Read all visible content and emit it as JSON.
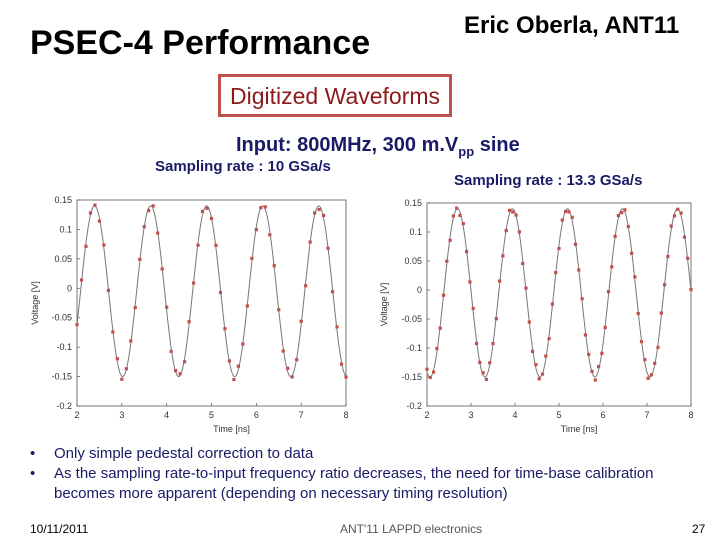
{
  "slide": {
    "title": "PSEC-4 Performance",
    "author": "Eric Oberla, ANT11",
    "boxed_label": "Digitized Waveforms",
    "input_prefix": "Input: 800MHz, 300 m.V",
    "input_sub": "pp",
    "input_suffix": " sine",
    "bullets": [
      "Only simple pedestal correction to data",
      "As the sampling rate-to-input frequency ratio decreases, the need for time-base calibration becomes more apparent (depending on necessary timing resolution)"
    ],
    "footer_date": "10/11/2011",
    "footer_center": "ANT'11 LAPPD electronics",
    "page_number": "27",
    "colors": {
      "accent_box": "#c0504d",
      "marker": "#c0504d",
      "text_dark_blue": "#1a1a66"
    }
  },
  "chart_data": [
    {
      "type": "scatter",
      "caption": "Sampling rate : 10 GSa/s",
      "xlabel": "Time [ns]",
      "ylabel": "Voltage [V]",
      "xlim": [
        2,
        8
      ],
      "ylim": [
        -0.2,
        0.15
      ],
      "xticks": [
        "2",
        "3",
        "4",
        "5",
        "6",
        "7",
        "8"
      ],
      "yticks": [
        "0.15",
        "0.1",
        "0.05",
        "0",
        "-0.05",
        "-0.1",
        "-0.15",
        "-0.2"
      ],
      "fit": {
        "type": "sine",
        "frequency_ghz": 0.8,
        "amplitude_v": 0.145,
        "offset_v": -0.005,
        "phase_ns": 2.08
      },
      "sample_period_ns": 0.1
    },
    {
      "type": "scatter",
      "caption": "Sampling rate : 13.3 GSa/s",
      "xlabel": "Time [ns]",
      "ylabel": "Voltage [V]",
      "xlim": [
        2,
        8
      ],
      "ylim": [
        -0.2,
        0.15
      ],
      "xticks": [
        "2",
        "3",
        "4",
        "5",
        "6",
        "7",
        "8"
      ],
      "yticks": [
        "0.15",
        "0.1",
        "0.05",
        "0",
        "-0.05",
        "-0.1",
        "-0.15",
        "-0.2"
      ],
      "fit": {
        "type": "sine",
        "frequency_ghz": 0.8,
        "amplitude_v": 0.145,
        "offset_v": -0.005,
        "phase_ns": 2.38
      },
      "sample_period_ns": 0.075
    }
  ]
}
